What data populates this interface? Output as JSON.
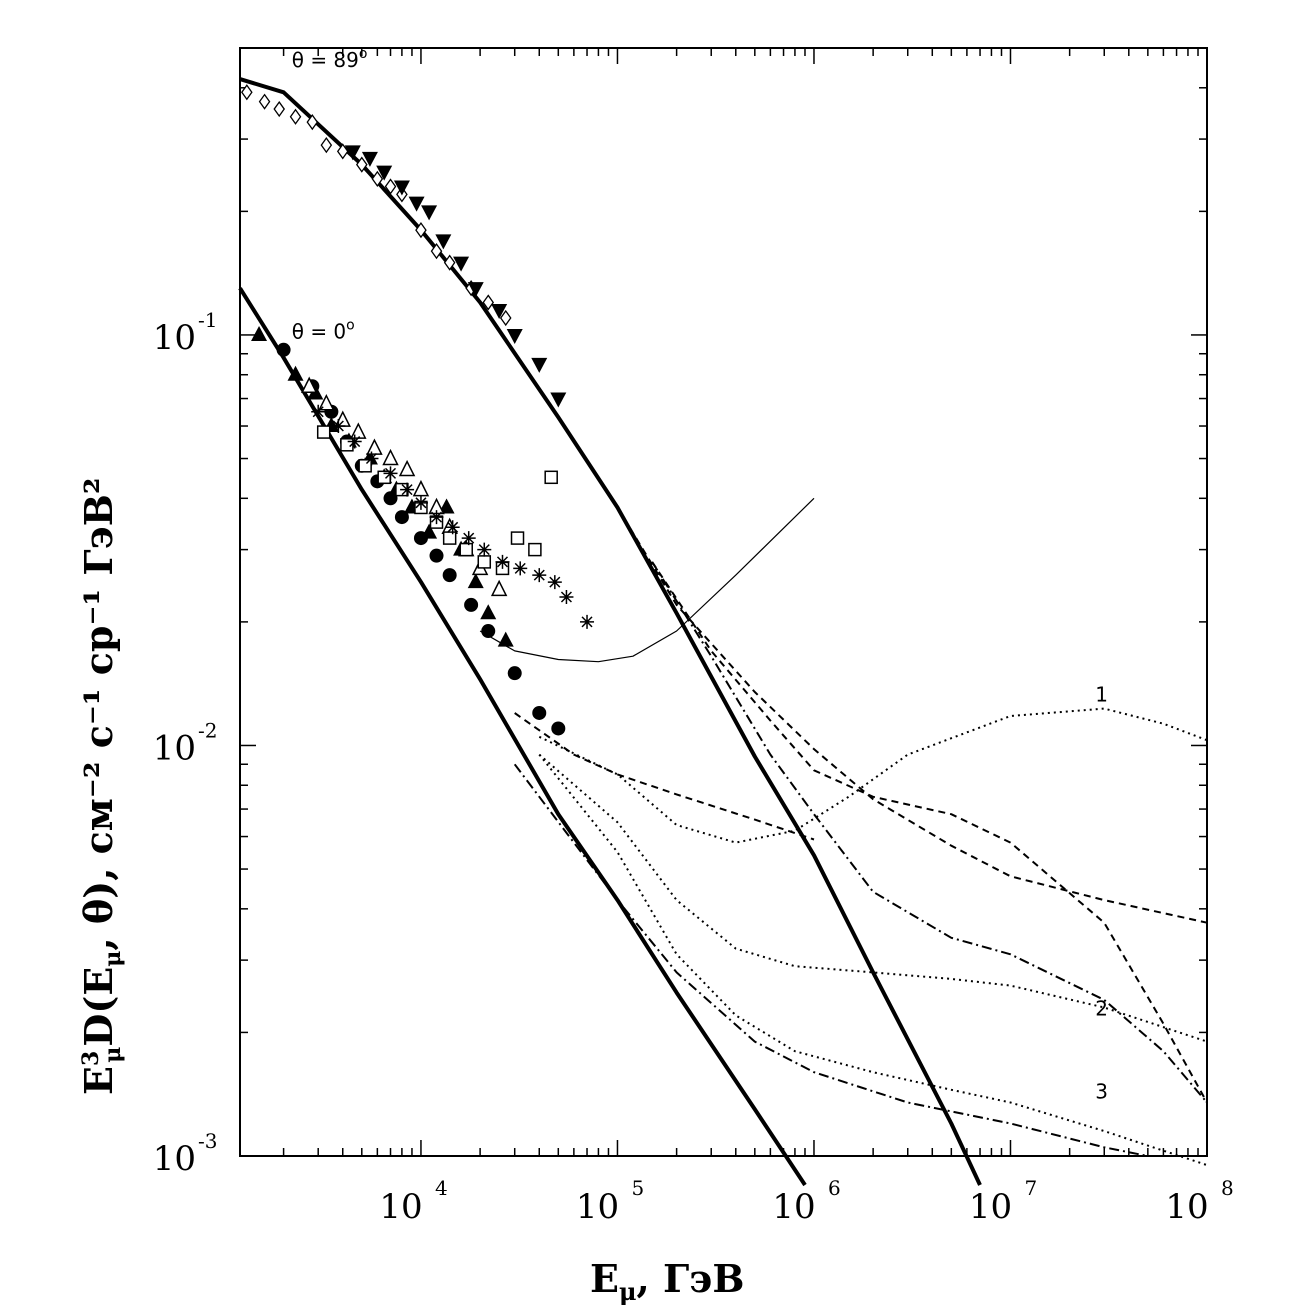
{
  "chart_data": {
    "type": "line",
    "xscale": "log",
    "yscale": "log",
    "xlim": [
      1200,
      100000000
    ],
    "ylim": [
      0.001,
      0.5
    ],
    "x_ticks": [
      {
        "value": 10000,
        "base": "10",
        "exp": "4"
      },
      {
        "value": 100000,
        "base": "10",
        "exp": "5"
      },
      {
        "value": 1000000,
        "base": "10",
        "exp": "6"
      },
      {
        "value": 10000000,
        "base": "10",
        "exp": "7"
      },
      {
        "value": 100000000,
        "base": "10",
        "exp": "8"
      }
    ],
    "y_ticks": [
      {
        "value": 0.1,
        "base": "10",
        "exp": "-1"
      },
      {
        "value": 0.01,
        "base": "10",
        "exp": "-2"
      },
      {
        "value": 0.001,
        "base": "10",
        "exp": "-3"
      }
    ],
    "xlabel": {
      "main": "E",
      "sub": "μ",
      "rest": ",  ГэВ"
    },
    "ylabel": {
      "e": "E",
      "sup": "3",
      "sub": "μ",
      "rest": "D(E",
      "sub2": "μ",
      "rest2": ", θ),",
      "unit": "см⁻² с⁻¹ ср⁻¹ ГэВ²"
    },
    "annotations": [
      {
        "text": "θ = 89",
        "sup": "o",
        "x": 2200,
        "y": 0.45
      },
      {
        "text": "θ = 0",
        "sup": "o",
        "x": 2200,
        "y": 0.098
      },
      {
        "text": "1",
        "x": 27000000,
        "y": 0.0128
      },
      {
        "text": "2",
        "x": 27000000,
        "y": 0.0022
      },
      {
        "text": "3",
        "x": 27000000,
        "y": 0.00138
      }
    ],
    "curves": [
      {
        "style": "solid-thick",
        "points": [
          [
            1200,
            0.42
          ],
          [
            2000,
            0.39
          ],
          [
            5000,
            0.26
          ],
          [
            10000,
            0.18
          ],
          [
            20000,
            0.12
          ],
          [
            50000,
            0.063
          ],
          [
            100000,
            0.038
          ],
          [
            200000,
            0.021
          ],
          [
            500000,
            0.0094
          ],
          [
            1000000,
            0.0054
          ],
          [
            2000000,
            0.0028
          ],
          [
            5000000,
            0.0012
          ],
          [
            7000000,
            0.00085
          ]
        ]
      },
      {
        "style": "solid-thick",
        "points": [
          [
            1200,
            0.13
          ],
          [
            2000,
            0.088
          ],
          [
            5000,
            0.042
          ],
          [
            10000,
            0.025
          ],
          [
            20000,
            0.0145
          ],
          [
            50000,
            0.0068
          ],
          [
            100000,
            0.0042
          ],
          [
            200000,
            0.0025
          ],
          [
            500000,
            0.0013
          ],
          [
            900000,
            0.00085
          ]
        ]
      },
      {
        "style": "solid-thin",
        "points": [
          [
            20000,
            0.019
          ],
          [
            30000,
            0.017
          ],
          [
            50000,
            0.0162
          ],
          [
            80000,
            0.016
          ],
          [
            120000,
            0.0165
          ],
          [
            200000,
            0.019
          ],
          [
            400000,
            0.026
          ],
          [
            1000000,
            0.04
          ]
        ]
      },
      {
        "style": "dashed",
        "points": [
          [
            100000,
            0.038
          ],
          [
            200000,
            0.022
          ],
          [
            500000,
            0.0135
          ],
          [
            1000000,
            0.0098
          ],
          [
            2000000,
            0.0074
          ],
          [
            5000000,
            0.0057
          ],
          [
            10000000,
            0.0048
          ],
          [
            30000000,
            0.0042
          ],
          [
            100000000,
            0.0037
          ]
        ]
      },
      {
        "style": "dashed",
        "points": [
          [
            150000,
            0.028
          ],
          [
            300000,
            0.017
          ],
          [
            600000,
            0.0115
          ],
          [
            1000000,
            0.0087
          ],
          [
            2000000,
            0.0075
          ],
          [
            5000000,
            0.0068
          ],
          [
            10000000,
            0.0058
          ],
          [
            30000000,
            0.0037
          ],
          [
            60000000,
            0.0021
          ],
          [
            100000000,
            0.00135
          ]
        ]
      },
      {
        "style": "dashdot",
        "points": [
          [
            150000,
            0.028
          ],
          [
            300000,
            0.0165
          ],
          [
            600000,
            0.0095
          ],
          [
            1000000,
            0.0068
          ],
          [
            2000000,
            0.0044
          ],
          [
            5000000,
            0.0034
          ],
          [
            10000000,
            0.0031
          ],
          [
            30000000,
            0.0024
          ],
          [
            60000000,
            0.0018
          ],
          [
            100000000,
            0.00135
          ]
        ]
      },
      {
        "style": "dashdot",
        "points": [
          [
            30000,
            0.009
          ],
          [
            60000,
            0.0058
          ],
          [
            100000,
            0.0042
          ],
          [
            200000,
            0.0028
          ],
          [
            500000,
            0.0019
          ],
          [
            1000000,
            0.0016
          ],
          [
            3000000,
            0.00135
          ],
          [
            10000000,
            0.0012
          ],
          [
            30000000,
            0.00105
          ],
          [
            50000000,
            0.001
          ]
        ]
      },
      {
        "style": "dashed",
        "points": [
          [
            30000,
            0.012
          ],
          [
            60000,
            0.0095
          ],
          [
            100000,
            0.0085
          ],
          [
            200000,
            0.0076
          ],
          [
            500000,
            0.0066
          ],
          [
            1000000,
            0.0059
          ]
        ]
      },
      {
        "style": "dotted",
        "points": [
          [
            40000,
            0.0105
          ],
          [
            100000,
            0.0085
          ],
          [
            200000,
            0.0064
          ],
          [
            400000,
            0.0058
          ],
          [
            800000,
            0.0062
          ],
          [
            1500000,
            0.0075
          ],
          [
            3000000,
            0.0095
          ],
          [
            10000000,
            0.0118
          ],
          [
            30000000,
            0.0123
          ],
          [
            60000000,
            0.0113
          ],
          [
            100000000,
            0.0103
          ]
        ]
      },
      {
        "style": "dotted",
        "points": [
          [
            40000,
            0.0095
          ],
          [
            100000,
            0.0065
          ],
          [
            200000,
            0.0042
          ],
          [
            400000,
            0.0032
          ],
          [
            800000,
            0.0029
          ],
          [
            2000000,
            0.0028
          ],
          [
            5000000,
            0.0027
          ],
          [
            10000000,
            0.0026
          ],
          [
            30000000,
            0.0023
          ],
          [
            100000000,
            0.0019
          ]
        ]
      },
      {
        "style": "dotted",
        "points": [
          [
            40000,
            0.0095
          ],
          [
            100000,
            0.0055
          ],
          [
            200000,
            0.0031
          ],
          [
            400000,
            0.0022
          ],
          [
            800000,
            0.0018
          ],
          [
            2000000,
            0.0016
          ],
          [
            5000000,
            0.00145
          ],
          [
            10000000,
            0.00135
          ],
          [
            30000000,
            0.00115
          ],
          [
            100000000,
            0.00095
          ]
        ]
      }
    ],
    "markers": [
      {
        "shape": "diamond-open",
        "points": [
          [
            1300,
            0.39
          ],
          [
            1600,
            0.37
          ],
          [
            1900,
            0.355
          ],
          [
            2300,
            0.34
          ],
          [
            2800,
            0.33
          ],
          [
            3300,
            0.29
          ],
          [
            4000,
            0.28
          ],
          [
            5000,
            0.26
          ],
          [
            6000,
            0.24
          ],
          [
            7000,
            0.23
          ],
          [
            8000,
            0.22
          ],
          [
            10000,
            0.18
          ],
          [
            12000,
            0.16
          ],
          [
            14000,
            0.15
          ],
          [
            18000,
            0.13
          ],
          [
            22000,
            0.12
          ],
          [
            27000,
            0.11
          ]
        ]
      },
      {
        "shape": "triangle-down-filled",
        "points": [
          [
            4500,
            0.28
          ],
          [
            5500,
            0.27
          ],
          [
            6500,
            0.25
          ],
          [
            8000,
            0.23
          ],
          [
            9500,
            0.21
          ],
          [
            11000,
            0.2
          ],
          [
            13000,
            0.17
          ],
          [
            16000,
            0.15
          ],
          [
            19000,
            0.13
          ],
          [
            25000,
            0.115
          ],
          [
            30000,
            0.1
          ],
          [
            40000,
            0.085
          ],
          [
            50000,
            0.07
          ]
        ]
      },
      {
        "shape": "triangle-up-filled",
        "points": [
          [
            1500,
            0.1
          ],
          [
            2300,
            0.08
          ],
          [
            2900,
            0.072
          ],
          [
            3500,
            0.06
          ],
          [
            4300,
            0.055
          ],
          [
            5500,
            0.05
          ],
          [
            6500,
            0.045
          ],
          [
            7500,
            0.042
          ],
          [
            9000,
            0.038
          ],
          [
            11000,
            0.033
          ],
          [
            13500,
            0.038
          ],
          [
            16000,
            0.03
          ],
          [
            19000,
            0.025
          ],
          [
            22000,
            0.021
          ],
          [
            27000,
            0.018
          ]
        ]
      },
      {
        "shape": "circle-filled",
        "points": [
          [
            2000,
            0.092
          ],
          [
            2800,
            0.075
          ],
          [
            3500,
            0.065
          ],
          [
            4200,
            0.055
          ],
          [
            5000,
            0.048
          ],
          [
            6000,
            0.044
          ],
          [
            7000,
            0.04
          ],
          [
            8000,
            0.036
          ],
          [
            10000,
            0.032
          ],
          [
            12000,
            0.029
          ],
          [
            14000,
            0.026
          ],
          [
            18000,
            0.022
          ],
          [
            22000,
            0.019
          ],
          [
            30000,
            0.015
          ],
          [
            40000,
            0.012
          ],
          [
            50000,
            0.011
          ]
        ]
      },
      {
        "shape": "triangle-up-open",
        "points": [
          [
            2700,
            0.075
          ],
          [
            3300,
            0.068
          ],
          [
            4000,
            0.062
          ],
          [
            4800,
            0.058
          ],
          [
            5800,
            0.053
          ],
          [
            7000,
            0.05
          ],
          [
            8500,
            0.047
          ],
          [
            10000,
            0.042
          ],
          [
            12000,
            0.038
          ],
          [
            14000,
            0.034
          ],
          [
            17000,
            0.03
          ],
          [
            20000,
            0.027
          ],
          [
            25000,
            0.024
          ]
        ]
      },
      {
        "shape": "square-open",
        "points": [
          [
            3200,
            0.058
          ],
          [
            4200,
            0.054
          ],
          [
            5200,
            0.048
          ],
          [
            6500,
            0.045
          ],
          [
            8000,
            0.042
          ],
          [
            10000,
            0.038
          ],
          [
            12000,
            0.035
          ],
          [
            14000,
            0.032
          ],
          [
            17000,
            0.03
          ],
          [
            21000,
            0.028
          ],
          [
            26000,
            0.027
          ],
          [
            31000,
            0.032
          ],
          [
            38000,
            0.03
          ],
          [
            46000,
            0.045
          ]
        ]
      },
      {
        "shape": "asterisk",
        "points": [
          [
            3000,
            0.065
          ],
          [
            3800,
            0.06
          ],
          [
            4600,
            0.055
          ],
          [
            5600,
            0.05
          ],
          [
            7000,
            0.046
          ],
          [
            8500,
            0.042
          ],
          [
            10000,
            0.039
          ],
          [
            12000,
            0.036
          ],
          [
            14500,
            0.034
          ],
          [
            17500,
            0.032
          ],
          [
            21000,
            0.03
          ],
          [
            26000,
            0.028
          ],
          [
            32000,
            0.027
          ],
          [
            40000,
            0.026
          ],
          [
            48000,
            0.025
          ],
          [
            55000,
            0.023
          ],
          [
            70000,
            0.02
          ]
        ]
      }
    ]
  }
}
